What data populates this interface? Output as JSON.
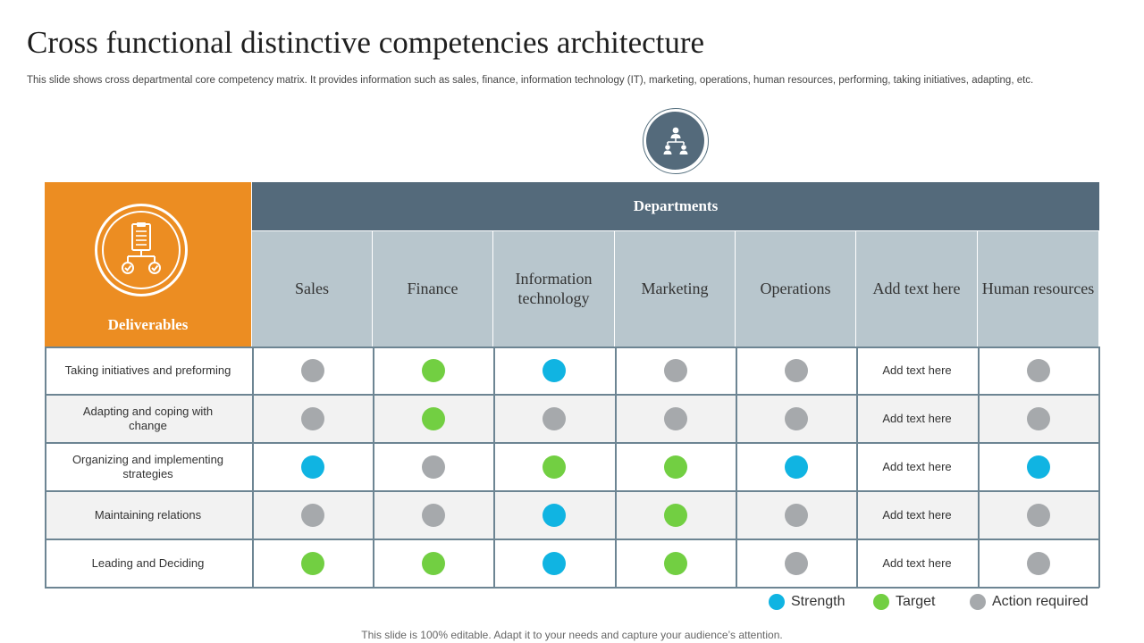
{
  "title": "Cross functional distinctive competencies architecture",
  "subtitle": "This slide shows cross departmental core competency matrix. It provides information such as sales, finance, information technology (IT), marketing, operations, human resources, performing, taking initiatives, adapting, etc.",
  "icons": {
    "header": "organization-chart-icon",
    "deliverables": "clipboard-checklist-icon"
  },
  "colors": {
    "strength": "#10b4e2",
    "target": "#72cf42",
    "action_required": "#a6a9ac",
    "orange": "#ec8d22",
    "slate": "#546a7b",
    "column_header_bg": "#b8c6cd"
  },
  "table": {
    "deliverables_label": "Deliverables",
    "departments_label": "Departments",
    "columns": [
      "Sales",
      "Finance",
      "Information technology",
      "Marketing",
      "Operations",
      "Add text here",
      "Human resources"
    ],
    "rows": [
      {
        "label": "Taking initiatives  and preforming",
        "cells": [
          "action_required",
          "target",
          "strength",
          "action_required",
          "action_required",
          "Add text here",
          "action_required"
        ]
      },
      {
        "label": "Adapting and coping with change",
        "cells": [
          "action_required",
          "target",
          "action_required",
          "action_required",
          "action_required",
          "Add text here",
          "action_required"
        ]
      },
      {
        "label": "Organizing and implementing strategies",
        "cells": [
          "strength",
          "action_required",
          "target",
          "target",
          "strength",
          "Add text here",
          "strength"
        ]
      },
      {
        "label": "Maintaining relations",
        "cells": [
          "action_required",
          "action_required",
          "strength",
          "target",
          "action_required",
          "Add text here",
          "action_required"
        ]
      },
      {
        "label": "Leading and Deciding",
        "cells": [
          "target",
          "target",
          "strength",
          "target",
          "action_required",
          "Add text here",
          "action_required"
        ]
      }
    ]
  },
  "legend": [
    {
      "key": "strength",
      "label": "Strength"
    },
    {
      "key": "target",
      "label": "Target"
    },
    {
      "key": "action_required",
      "label": "Action required"
    }
  ],
  "footer": "This slide is 100% editable. Adapt it to your needs and capture your audience’s attention."
}
